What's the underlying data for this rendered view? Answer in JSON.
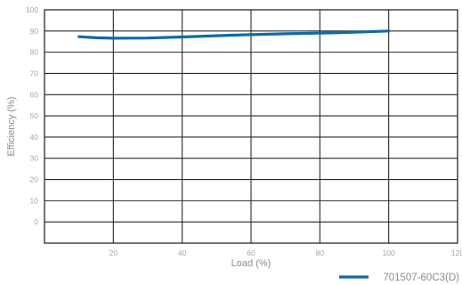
{
  "chart_data": {
    "type": "line",
    "xlabel": "Load (%)",
    "ylabel": "Efficiency (%)",
    "xlim": [
      0,
      120
    ],
    "ylim": [
      -10,
      100
    ],
    "x_ticks": [
      "20",
      "40",
      "60",
      "80",
      "100",
      "120"
    ],
    "y_ticks": [
      "0",
      "10",
      "20",
      "30",
      "40",
      "50",
      "60",
      "70",
      "80",
      "90",
      "100"
    ],
    "grid": true,
    "legend_position": "bottom-right",
    "series": [
      {
        "name": "701507-60C3(D)",
        "color": "#0f6aa6",
        "x": [
          10,
          15,
          20,
          30,
          40,
          50,
          60,
          70,
          80,
          90,
          100
        ],
        "y": [
          87.3,
          86.8,
          86.6,
          86.7,
          87.2,
          87.8,
          88.3,
          88.7,
          89.0,
          89.4,
          90.0
        ]
      }
    ]
  }
}
